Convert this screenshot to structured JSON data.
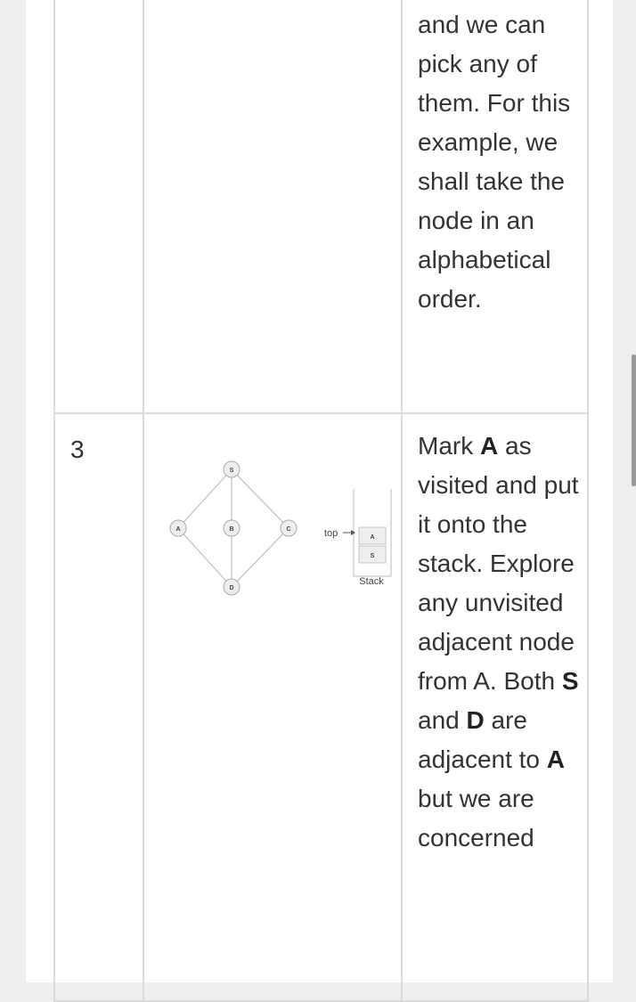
{
  "rows": [
    {
      "step": "",
      "text": "and we can pick any of them. For this example, we shall take the node in an alphabetical order."
    },
    {
      "step": "3",
      "text_parts": [
        "Mark ",
        "A",
        " as visited and put it onto the stack. Explore any unvisited adjacent node from A. Both ",
        "S",
        " and ",
        "D",
        " are adjacent to ",
        "A",
        " but we are concerned"
      ],
      "figure": {
        "nodes": [
          "S",
          "A",
          "B",
          "C",
          "D"
        ],
        "stack_items": [
          "A",
          "S"
        ],
        "top_label": "top",
        "stack_label": "Stack"
      }
    }
  ],
  "colors": {
    "page_bg": "#efefef",
    "cell_border": "#dadada",
    "text": "#333333",
    "node_fill": "#eeeeee",
    "node_stroke": "#aaaaaa"
  }
}
